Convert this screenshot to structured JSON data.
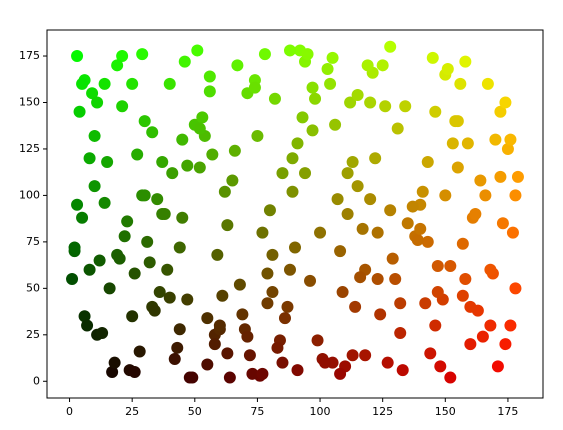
{
  "chart_data": {
    "type": "scatter",
    "x": [
      3,
      17,
      45,
      88,
      120,
      160,
      172,
      5,
      33,
      67,
      101,
      140,
      155,
      12,
      58,
      92,
      130,
      177,
      25,
      76,
      8,
      40,
      110,
      150,
      168,
      2,
      29,
      63,
      97,
      135,
      178,
      21,
      52,
      84,
      118,
      146,
      6,
      37,
      71,
      105,
      143,
      175,
      14,
      48,
      81,
      115,
      152,
      30,
      60,
      94,
      128,
      163,
      10,
      43,
      77,
      112,
      149,
      170,
      19,
      55,
      89,
      123,
      158,
      4,
      35,
      69,
      103,
      138,
      174,
      26,
      57,
      91,
      126,
      161,
      7,
      41,
      74,
      108,
      144,
      179,
      16,
      50,
      83,
      117,
      153,
      32,
      64,
      98,
      132,
      166,
      11,
      46,
      79,
      113,
      148,
      23,
      54,
      87,
      121,
      157,
      1,
      38,
      72,
      106,
      141,
      176,
      27,
      61,
      95,
      129,
      164,
      9,
      44,
      78,
      111,
      147,
      18,
      53,
      86,
      119,
      154,
      31,
      65,
      99,
      134,
      169,
      13,
      47,
      80,
      114,
      151,
      24,
      56,
      90,
      124,
      159,
      6,
      39,
      73,
      107,
      142,
      173,
      20,
      51,
      85,
      118,
      156,
      34,
      66,
      100,
      133,
      167,
      15,
      49,
      82,
      116,
      150,
      28,
      59,
      93,
      127,
      162,
      3,
      42,
      75,
      109,
      145,
      178,
      22,
      55,
      88,
      122,
      158,
      11,
      36,
      70,
      104,
      139,
      171,
      29,
      62,
      96,
      131,
      165,
      8,
      45,
      79,
      113,
      147,
      19,
      52,
      85,
      120,
      155,
      33,
      68,
      102,
      137,
      172,
      25,
      58,
      91,
      125,
      160,
      2,
      40,
      74,
      108,
      143,
      176,
      14,
      47,
      81,
      115,
      152,
      30,
      63,
      97,
      132,
      168,
      10,
      44,
      77,
      111,
      146,
      21,
      56,
      89,
      123,
      157,
      5,
      37,
      71,
      105,
      140,
      174,
      26,
      60,
      94,
      128
    ],
    "values": [
      175,
      5,
      130,
      60,
      150,
      20,
      110,
      88,
      40,
      170,
      12,
      95,
      140,
      65,
      25,
      178,
      55,
      80,
      160,
      3,
      120,
      45,
      8,
      165,
      30,
      70,
      100,
      15,
      135,
      85,
      50,
      175,
      115,
      22,
      60,
      145,
      35,
      90,
      155,
      10,
      75,
      125,
      160,
      2,
      48,
      105,
      62,
      140,
      28,
      172,
      92,
      38,
      105,
      18,
      80,
      150,
      44,
      130,
      68,
      9,
      120,
      55,
      172,
      145,
      98,
      36,
      168,
      78,
      20,
      58,
      122,
      6,
      148,
      88,
      30,
      112,
      162,
      70,
      15,
      110,
      50,
      138,
      18,
      82,
      128,
      64,
      2,
      152,
      42,
      100,
      25,
      172,
      58,
      118,
      8,
      86,
      132,
      40,
      166,
      74,
      55,
      90,
      14,
      138,
      102,
      30,
      122,
      46,
      176,
      66,
      108,
      155,
      28,
      176,
      90,
      48,
      10,
      142,
      34,
      170,
      140,
      75,
      108,
      22,
      148,
      58,
      26,
      116,
      92,
      40,
      168,
      6,
      156,
      72,
      36,
      128,
      162,
      60,
      4,
      98,
      42,
      85,
      66,
      178,
      112,
      14,
      160,
      38,
      124,
      80,
      6,
      160,
      118,
      2,
      152,
      56,
      100,
      16,
      68,
      142,
      10,
      90,
      95,
      12,
      132,
      48,
      174,
      100,
      78,
      34,
      178,
      120,
      55,
      150,
      48,
      28,
      160,
      76,
      8,
      176,
      102,
      54,
      136,
      24,
      60,
      88,
      42,
      14,
      62,
      170,
      136,
      10,
      98,
      115,
      134,
      52,
      10,
      94,
      145,
      35,
      20,
      128,
      170,
      40,
      72,
      160,
      158,
      4,
      118,
      130,
      96,
      44,
      68,
      154,
      2,
      100,
      84,
      158,
      26,
      60,
      132,
      72,
      4,
      112,
      30,
      148,
      164,
      102,
      80,
      46,
      160,
      118,
      24,
      174,
      82,
      150,
      5,
      30,
      112,
      180
    ],
    "xlim": [
      -9,
      189
    ],
    "ylim": [
      -9,
      189
    ],
    "xticks": [
      0,
      25,
      50,
      75,
      100,
      125,
      150,
      175
    ],
    "yticks": [
      0,
      25,
      50,
      75,
      100,
      125,
      150,
      175
    ]
  }
}
